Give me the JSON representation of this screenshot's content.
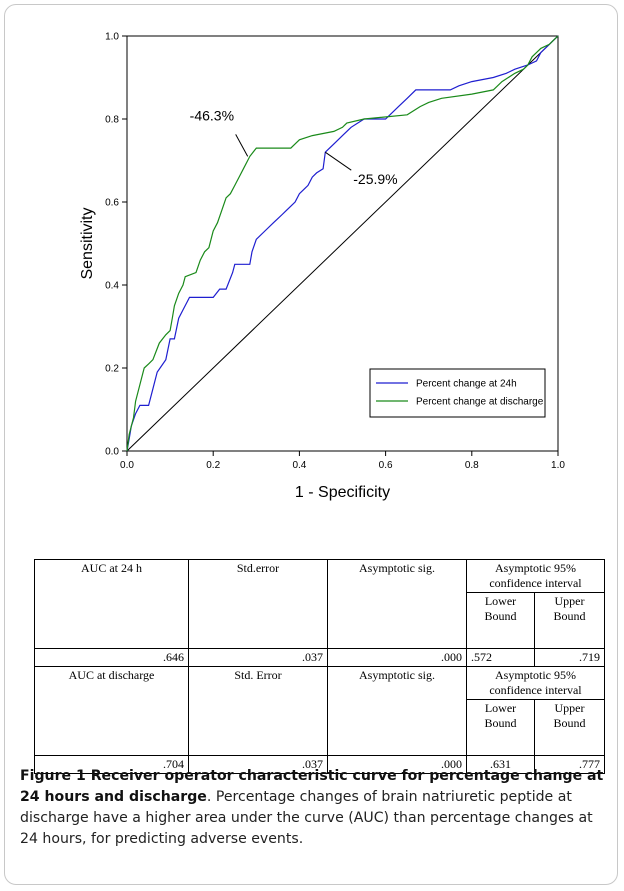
{
  "chart_data": {
    "type": "line",
    "xlabel": "1 - Specificity",
    "ylabel": "Sensitivity",
    "xlim": [
      0,
      1
    ],
    "ylim": [
      0,
      1
    ],
    "xticks": [
      "0.0",
      "0.2",
      "0.4",
      "0.6",
      "0.8",
      "1.0"
    ],
    "yticks": [
      "0.0",
      "0.2",
      "0.4",
      "0.6",
      "0.8",
      "1.0"
    ],
    "grid": false,
    "legend_position": "bottom-right",
    "series": [
      {
        "name": "Percent change at 24h",
        "color": "#1f1fd0",
        "points": [
          [
            0,
            0
          ],
          [
            0.005,
            0.03
          ],
          [
            0.01,
            0.06
          ],
          [
            0.02,
            0.09
          ],
          [
            0.03,
            0.11
          ],
          [
            0.05,
            0.11
          ],
          [
            0.06,
            0.15
          ],
          [
            0.07,
            0.19
          ],
          [
            0.09,
            0.22
          ],
          [
            0.1,
            0.27
          ],
          [
            0.11,
            0.27
          ],
          [
            0.12,
            0.32
          ],
          [
            0.13,
            0.34
          ],
          [
            0.14,
            0.36
          ],
          [
            0.145,
            0.37
          ],
          [
            0.2,
            0.37
          ],
          [
            0.215,
            0.39
          ],
          [
            0.23,
            0.39
          ],
          [
            0.245,
            0.43
          ],
          [
            0.25,
            0.45
          ],
          [
            0.285,
            0.45
          ],
          [
            0.29,
            0.48
          ],
          [
            0.3,
            0.51
          ],
          [
            0.32,
            0.53
          ],
          [
            0.34,
            0.55
          ],
          [
            0.35,
            0.56
          ],
          [
            0.36,
            0.57
          ],
          [
            0.37,
            0.58
          ],
          [
            0.38,
            0.59
          ],
          [
            0.39,
            0.6
          ],
          [
            0.4,
            0.62
          ],
          [
            0.41,
            0.63
          ],
          [
            0.42,
            0.64
          ],
          [
            0.43,
            0.66
          ],
          [
            0.44,
            0.67
          ],
          [
            0.455,
            0.68
          ],
          [
            0.46,
            0.72
          ],
          [
            0.48,
            0.74
          ],
          [
            0.5,
            0.76
          ],
          [
            0.52,
            0.78
          ],
          [
            0.55,
            0.8
          ],
          [
            0.6,
            0.8
          ],
          [
            0.63,
            0.83
          ],
          [
            0.65,
            0.85
          ],
          [
            0.67,
            0.87
          ],
          [
            0.75,
            0.87
          ],
          [
            0.77,
            0.88
          ],
          [
            0.8,
            0.89
          ],
          [
            0.85,
            0.9
          ],
          [
            0.88,
            0.91
          ],
          [
            0.9,
            0.92
          ],
          [
            0.93,
            0.93
          ],
          [
            0.95,
            0.94
          ],
          [
            0.96,
            0.96
          ],
          [
            0.97,
            0.97
          ],
          [
            0.98,
            0.98
          ],
          [
            0.99,
            0.99
          ],
          [
            1,
            1
          ]
        ]
      },
      {
        "name": "Percent change at discharge",
        "color": "#1a8a1a",
        "points": [
          [
            0,
            0
          ],
          [
            0.005,
            0.04
          ],
          [
            0.015,
            0.08
          ],
          [
            0.02,
            0.12
          ],
          [
            0.03,
            0.16
          ],
          [
            0.04,
            0.2
          ],
          [
            0.05,
            0.21
          ],
          [
            0.06,
            0.22
          ],
          [
            0.075,
            0.26
          ],
          [
            0.09,
            0.28
          ],
          [
            0.1,
            0.29
          ],
          [
            0.105,
            0.32
          ],
          [
            0.11,
            0.35
          ],
          [
            0.12,
            0.38
          ],
          [
            0.13,
            0.4
          ],
          [
            0.135,
            0.42
          ],
          [
            0.16,
            0.43
          ],
          [
            0.17,
            0.46
          ],
          [
            0.18,
            0.48
          ],
          [
            0.19,
            0.49
          ],
          [
            0.2,
            0.53
          ],
          [
            0.21,
            0.55
          ],
          [
            0.22,
            0.58
          ],
          [
            0.23,
            0.61
          ],
          [
            0.24,
            0.62
          ],
          [
            0.25,
            0.64
          ],
          [
            0.26,
            0.66
          ],
          [
            0.27,
            0.68
          ],
          [
            0.28,
            0.7
          ],
          [
            0.285,
            0.71
          ],
          [
            0.3,
            0.73
          ],
          [
            0.38,
            0.73
          ],
          [
            0.39,
            0.74
          ],
          [
            0.4,
            0.75
          ],
          [
            0.43,
            0.76
          ],
          [
            0.48,
            0.77
          ],
          [
            0.5,
            0.78
          ],
          [
            0.51,
            0.79
          ],
          [
            0.55,
            0.8
          ],
          [
            0.65,
            0.81
          ],
          [
            0.68,
            0.83
          ],
          [
            0.7,
            0.84
          ],
          [
            0.73,
            0.85
          ],
          [
            0.8,
            0.86
          ],
          [
            0.85,
            0.87
          ],
          [
            0.87,
            0.89
          ],
          [
            0.9,
            0.91
          ],
          [
            0.92,
            0.92
          ],
          [
            0.93,
            0.93
          ],
          [
            0.94,
            0.95
          ],
          [
            0.95,
            0.96
          ],
          [
            0.96,
            0.97
          ],
          [
            0.98,
            0.98
          ],
          [
            0.99,
            0.99
          ],
          [
            1,
            1
          ]
        ]
      }
    ],
    "annotations": [
      {
        "text": "-46.3%",
        "x": 0.28,
        "y": 0.71
      },
      {
        "text": "-25.9%",
        "x": 0.46,
        "y": 0.72
      }
    ]
  },
  "table": {
    "rows": [
      {
        "auc_label": "AUC at 24 h",
        "se_label": "Std.error",
        "sig_label": "Asymptotic sig.",
        "ci_label": "Asymptotic 95% confidence interval",
        "lower_label": "Lower Bound",
        "upper_label": "Upper Bound",
        "auc": ".646",
        "se": ".037",
        "sig": ".000",
        "lower": ".572",
        "upper": ".719"
      },
      {
        "auc_label": "AUC at discharge",
        "se_label": "Std. Error",
        "sig_label": "Asymptotic sig.",
        "ci_label": "Asymptotic 95% confidence interval",
        "lower_label": "Lower Bound",
        "upper_label": "Upper Bound",
        "auc": ".704",
        "se": ".037",
        "sig": ".000",
        "lower": ".631",
        "upper": ".777"
      }
    ]
  },
  "caption": {
    "title": "Figure 1 Receiver operator characteristic curve for percentage change at 24 hours and discharge",
    "body": ". Percentage changes of brain natriuretic peptide at discharge have a higher area under the curve (AUC) than percentage changes at 24 hours, for predicting adverse events."
  }
}
